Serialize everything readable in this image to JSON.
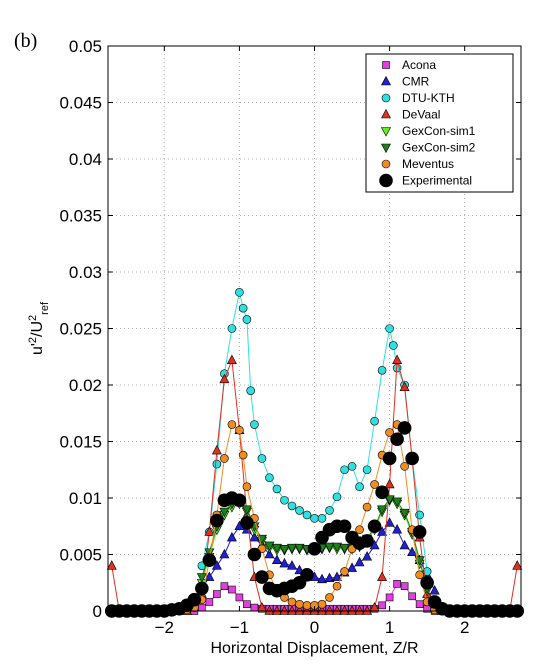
{
  "panel_label": "(b)",
  "colors": {
    "Acona": "#e040e0",
    "CMR": "#2020d0",
    "DTU-KTH": "#30e0e0",
    "DeVaal": "#e03020",
    "GexCon-sim1": "#60f020",
    "GexCon-sim2": "#208020",
    "Meventus": "#f08c20",
    "Experimental": "#000000"
  },
  "chart_data": {
    "type": "line",
    "title": "",
    "xlabel": "Horizontal Displacement, Z/R",
    "ylabel_main": "u'",
    "ylabel_sup1": "2",
    "ylabel_mid": "/U",
    "ylabel_sup2": "2",
    "ylabel_sub": "ref",
    "xlim": [
      -2.75,
      2.75
    ],
    "ylim": [
      0,
      0.05
    ],
    "xticks": [
      -2,
      -1,
      0,
      1,
      2
    ],
    "xtick_labels": [
      "−2",
      "−1",
      "0",
      "1",
      "2"
    ],
    "yticks": [
      0,
      0.005,
      0.01,
      0.015,
      0.02,
      0.025,
      0.03,
      0.035,
      0.04,
      0.045,
      0.05
    ],
    "ytick_labels": [
      "0",
      "0.005",
      "0.01",
      "0.015",
      "0.02",
      "0.025",
      "0.03",
      "0.035",
      "0.04",
      "0.045",
      "0.05"
    ],
    "grid": true,
    "legend_position": "top-right",
    "series": [
      {
        "name": "Acona",
        "marker": "square",
        "x": [
          -1.8,
          -1.7,
          -1.6,
          -1.5,
          -1.4,
          -1.3,
          -1.2,
          -1.1,
          -1.0,
          -0.9,
          -0.8,
          -0.7,
          -0.6,
          -0.5,
          -0.4,
          -0.3,
          -0.2,
          -0.1,
          0.0,
          0.1,
          0.2,
          0.3,
          0.4,
          0.5,
          0.6,
          0.7,
          0.8,
          0.9,
          1.0,
          1.1,
          1.2,
          1.3,
          1.4,
          1.5,
          1.6
        ],
        "y": [
          0.0,
          0.0,
          0.0,
          0.0003,
          0.0008,
          0.0015,
          0.0022,
          0.0019,
          0.0012,
          0.0006,
          0.0003,
          0.0002,
          0.0002,
          0.0002,
          0.0002,
          0.0002,
          0.0002,
          0.0002,
          0.0002,
          0.0002,
          0.0002,
          0.0002,
          0.0002,
          0.0002,
          0.0002,
          0.0002,
          0.0002,
          0.0005,
          0.0012,
          0.0024,
          0.0022,
          0.0013,
          0.0006,
          0.0002,
          0.0
        ]
      },
      {
        "name": "CMR",
        "marker": "triangle-up",
        "x": [
          -1.6,
          -1.5,
          -1.4,
          -1.3,
          -1.2,
          -1.1,
          -1.0,
          -0.9,
          -0.8,
          -0.7,
          -0.6,
          -0.5,
          -0.4,
          -0.3,
          -0.2,
          -0.1,
          0.0,
          0.1,
          0.2,
          0.3,
          0.4,
          0.5,
          0.6,
          0.7,
          0.8,
          0.9,
          1.0,
          1.1,
          1.2,
          1.3,
          1.4,
          1.5,
          1.6
        ],
        "y": [
          0.001,
          0.002,
          0.003,
          0.004,
          0.005,
          0.0065,
          0.0075,
          0.0072,
          0.0065,
          0.0058,
          0.005,
          0.0045,
          0.0042,
          0.004,
          0.0036,
          0.0032,
          0.003,
          0.0028,
          0.0029,
          0.003,
          0.0034,
          0.0038,
          0.0043,
          0.0048,
          0.0058,
          0.007,
          0.0078,
          0.0072,
          0.0058,
          0.0052,
          0.0045,
          0.0032,
          0.0018
        ]
      },
      {
        "name": "DTU-KTH",
        "marker": "circle",
        "x": [
          -1.5,
          -1.4,
          -1.3,
          -1.2,
          -1.1,
          -1.0,
          -0.95,
          -0.9,
          -0.85,
          -0.8,
          -0.7,
          -0.6,
          -0.5,
          -0.4,
          -0.3,
          -0.2,
          -0.1,
          0.0,
          0.1,
          0.2,
          0.3,
          0.4,
          0.5,
          0.6,
          0.7,
          0.8,
          0.9,
          1.0,
          1.05,
          1.1,
          1.2,
          1.3,
          1.4,
          1.5
        ],
        "y": [
          0.004,
          0.007,
          0.013,
          0.021,
          0.025,
          0.0282,
          0.0268,
          0.0258,
          0.0195,
          0.0165,
          0.0135,
          0.0118,
          0.0108,
          0.0098,
          0.0093,
          0.0089,
          0.0085,
          0.0082,
          0.0082,
          0.0089,
          0.0101,
          0.0125,
          0.0128,
          0.011,
          0.0125,
          0.0168,
          0.0213,
          0.025,
          0.0235,
          0.0215,
          0.02,
          0.0135,
          0.0085,
          0.0035
        ]
      },
      {
        "name": "DeVaal",
        "marker": "triangle-up",
        "x": [
          -2.7,
          -2.6,
          -2.5,
          -2.4,
          -2.3,
          -2.2,
          -2.1,
          -2.0,
          -1.9,
          -1.8,
          -1.7,
          -1.6,
          -1.5,
          -1.4,
          -1.3,
          -1.2,
          -1.1,
          -1.0,
          -0.9,
          -0.8,
          -0.7,
          -0.6,
          -0.5,
          -0.4,
          -0.3,
          -0.2,
          -0.1,
          0.0,
          0.1,
          0.2,
          0.3,
          0.4,
          0.5,
          0.6,
          0.7,
          0.8,
          0.9,
          1.0,
          1.1,
          1.2,
          1.3,
          1.4,
          1.5,
          1.6,
          1.7,
          1.8,
          1.9,
          2.0,
          2.1,
          2.2,
          2.3,
          2.4,
          2.5,
          2.6,
          2.7
        ],
        "y": [
          0.004,
          0.0,
          0.0,
          0.0,
          0.0,
          0.0,
          0.0,
          0.0,
          0.0,
          0.0,
          0.0,
          0.0003,
          0.0015,
          0.007,
          0.0142,
          0.0205,
          0.0222,
          0.016,
          0.0085,
          0.003,
          0.0003,
          0.0,
          0.0,
          0.0,
          0.0,
          0.0,
          0.0,
          0.0,
          0.0,
          0.0,
          0.0,
          0.0,
          0.0,
          0.0,
          0.0,
          0.0003,
          0.003,
          0.0112,
          0.0222,
          0.0198,
          0.0135,
          0.0065,
          0.0015,
          0.0003,
          0.0,
          0.0,
          0.0,
          0.0,
          0.0,
          0.0,
          0.0,
          0.0,
          0.0,
          0.0,
          0.004
        ]
      },
      {
        "name": "GexCon-sim1",
        "marker": "triangle-down",
        "x": [
          -1.5,
          -1.4,
          -1.3,
          -1.2,
          -1.1,
          -1.0,
          -0.9,
          -0.8,
          -0.7,
          -0.6,
          -0.5,
          -0.4,
          -0.3,
          -0.2,
          -0.1,
          0.0,
          0.1,
          0.2,
          0.3,
          0.4,
          0.5,
          0.6,
          0.7,
          0.8,
          0.9,
          1.0,
          1.1,
          1.2,
          1.3,
          1.4,
          1.5
        ],
        "y": [
          0.0025,
          0.0048,
          0.0072,
          0.0085,
          0.0092,
          0.0095,
          0.0088,
          0.0072,
          0.0062,
          0.0056,
          0.0054,
          0.0054,
          0.0055,
          0.0055,
          0.0054,
          0.0055,
          0.0055,
          0.0056,
          0.0055,
          0.0055,
          0.0055,
          0.0057,
          0.0062,
          0.0072,
          0.0088,
          0.0098,
          0.0095,
          0.0085,
          0.0068,
          0.0042,
          0.0018
        ]
      },
      {
        "name": "GexCon-sim2",
        "marker": "triangle-down",
        "x": [
          -1.5,
          -1.4,
          -1.3,
          -1.2,
          -1.1,
          -1.0,
          -0.9,
          -0.8,
          -0.7,
          -0.6,
          -0.5,
          -0.4,
          -0.3,
          -0.2,
          -0.1,
          0.0,
          0.1,
          0.2,
          0.3,
          0.4,
          0.5,
          0.6,
          0.7,
          0.8,
          0.9,
          1.0,
          1.1,
          1.2,
          1.3,
          1.4,
          1.5
        ],
        "y": [
          0.003,
          0.0052,
          0.0075,
          0.0088,
          0.0095,
          0.0098,
          0.009,
          0.0075,
          0.0064,
          0.0058,
          0.0056,
          0.0055,
          0.0056,
          0.0056,
          0.0055,
          0.0056,
          0.0056,
          0.0057,
          0.0057,
          0.0056,
          0.0056,
          0.0058,
          0.0064,
          0.0074,
          0.009,
          0.0099,
          0.0097,
          0.0087,
          0.007,
          0.0045,
          0.002
        ]
      },
      {
        "name": "Meventus",
        "marker": "circle",
        "x": [
          -2.7,
          -2.6,
          -2.5,
          -2.4,
          -2.3,
          -2.2,
          -2.1,
          -2.0,
          -1.9,
          -1.8,
          -1.7,
          -1.6,
          -1.5,
          -1.4,
          -1.3,
          -1.2,
          -1.1,
          -1.0,
          -0.95,
          -0.9,
          -0.8,
          -0.7,
          -0.6,
          -0.5,
          -0.4,
          -0.3,
          -0.2,
          -0.1,
          0.0,
          0.1,
          0.2,
          0.3,
          0.4,
          0.5,
          0.6,
          0.7,
          0.8,
          0.9,
          1.0,
          1.1,
          1.2,
          1.3,
          1.4,
          1.5,
          1.6,
          1.7,
          1.8,
          1.9,
          2.0,
          2.1,
          2.2,
          2.3,
          2.4,
          2.5,
          2.6,
          2.7
        ],
        "y": [
          0.0,
          0.0,
          0.0,
          0.0,
          0.0,
          0.0,
          0.0,
          0.0,
          0.0,
          0.0,
          0.0001,
          0.0003,
          0.001,
          0.0045,
          0.0085,
          0.0135,
          0.0165,
          0.016,
          0.0138,
          0.011,
          0.0082,
          0.0055,
          0.0032,
          0.0018,
          0.0012,
          0.0008,
          0.0006,
          0.0005,
          0.0005,
          0.0006,
          0.0012,
          0.0022,
          0.0035,
          0.0055,
          0.0072,
          0.0092,
          0.0112,
          0.0138,
          0.0158,
          0.0165,
          0.0128,
          0.0072,
          0.0032,
          0.0008,
          0.0001,
          0.0,
          0.0,
          0.0,
          0.0,
          0.0,
          0.0,
          0.0,
          0.0,
          0.0,
          0.0,
          0.0
        ]
      },
      {
        "name": "Experimental",
        "marker": "circle-large",
        "x": [
          -2.7,
          -2.6,
          -2.5,
          -2.4,
          -2.3,
          -2.2,
          -2.1,
          -2.0,
          -1.9,
          -1.8,
          -1.7,
          -1.6,
          -1.5,
          -1.4,
          -1.3,
          -1.2,
          -1.1,
          -1.0,
          -0.9,
          -0.8,
          -0.7,
          -0.6,
          -0.5,
          -0.4,
          -0.3,
          -0.2,
          -0.1,
          0.0,
          0.1,
          0.2,
          0.3,
          0.4,
          0.5,
          0.6,
          0.7,
          0.8,
          0.9,
          1.0,
          1.1,
          1.2,
          1.3,
          1.4,
          1.5,
          1.6,
          1.7,
          1.8,
          1.9,
          2.0,
          2.1,
          2.2,
          2.3,
          2.4,
          2.5,
          2.6,
          2.7
        ],
        "y": [
          0.0,
          0.0,
          0.0,
          0.0,
          0.0,
          0.0,
          0.0,
          0.0,
          0.0001,
          0.0002,
          0.0005,
          0.001,
          0.002,
          0.0045,
          0.008,
          0.0098,
          0.01,
          0.0098,
          0.0078,
          0.005,
          0.003,
          0.002,
          0.0018,
          0.002,
          0.0022,
          0.0025,
          0.0032,
          0.0055,
          0.0065,
          0.0072,
          0.0075,
          0.0075,
          0.0065,
          0.006,
          0.0062,
          0.0075,
          0.0105,
          0.0135,
          0.0152,
          0.0162,
          0.0135,
          0.007,
          0.0025,
          0.0008,
          0.0002,
          0.0,
          0.0,
          0.0,
          0.0,
          0.0,
          0.0,
          0.0,
          0.0,
          0.0,
          0.0
        ]
      }
    ]
  }
}
